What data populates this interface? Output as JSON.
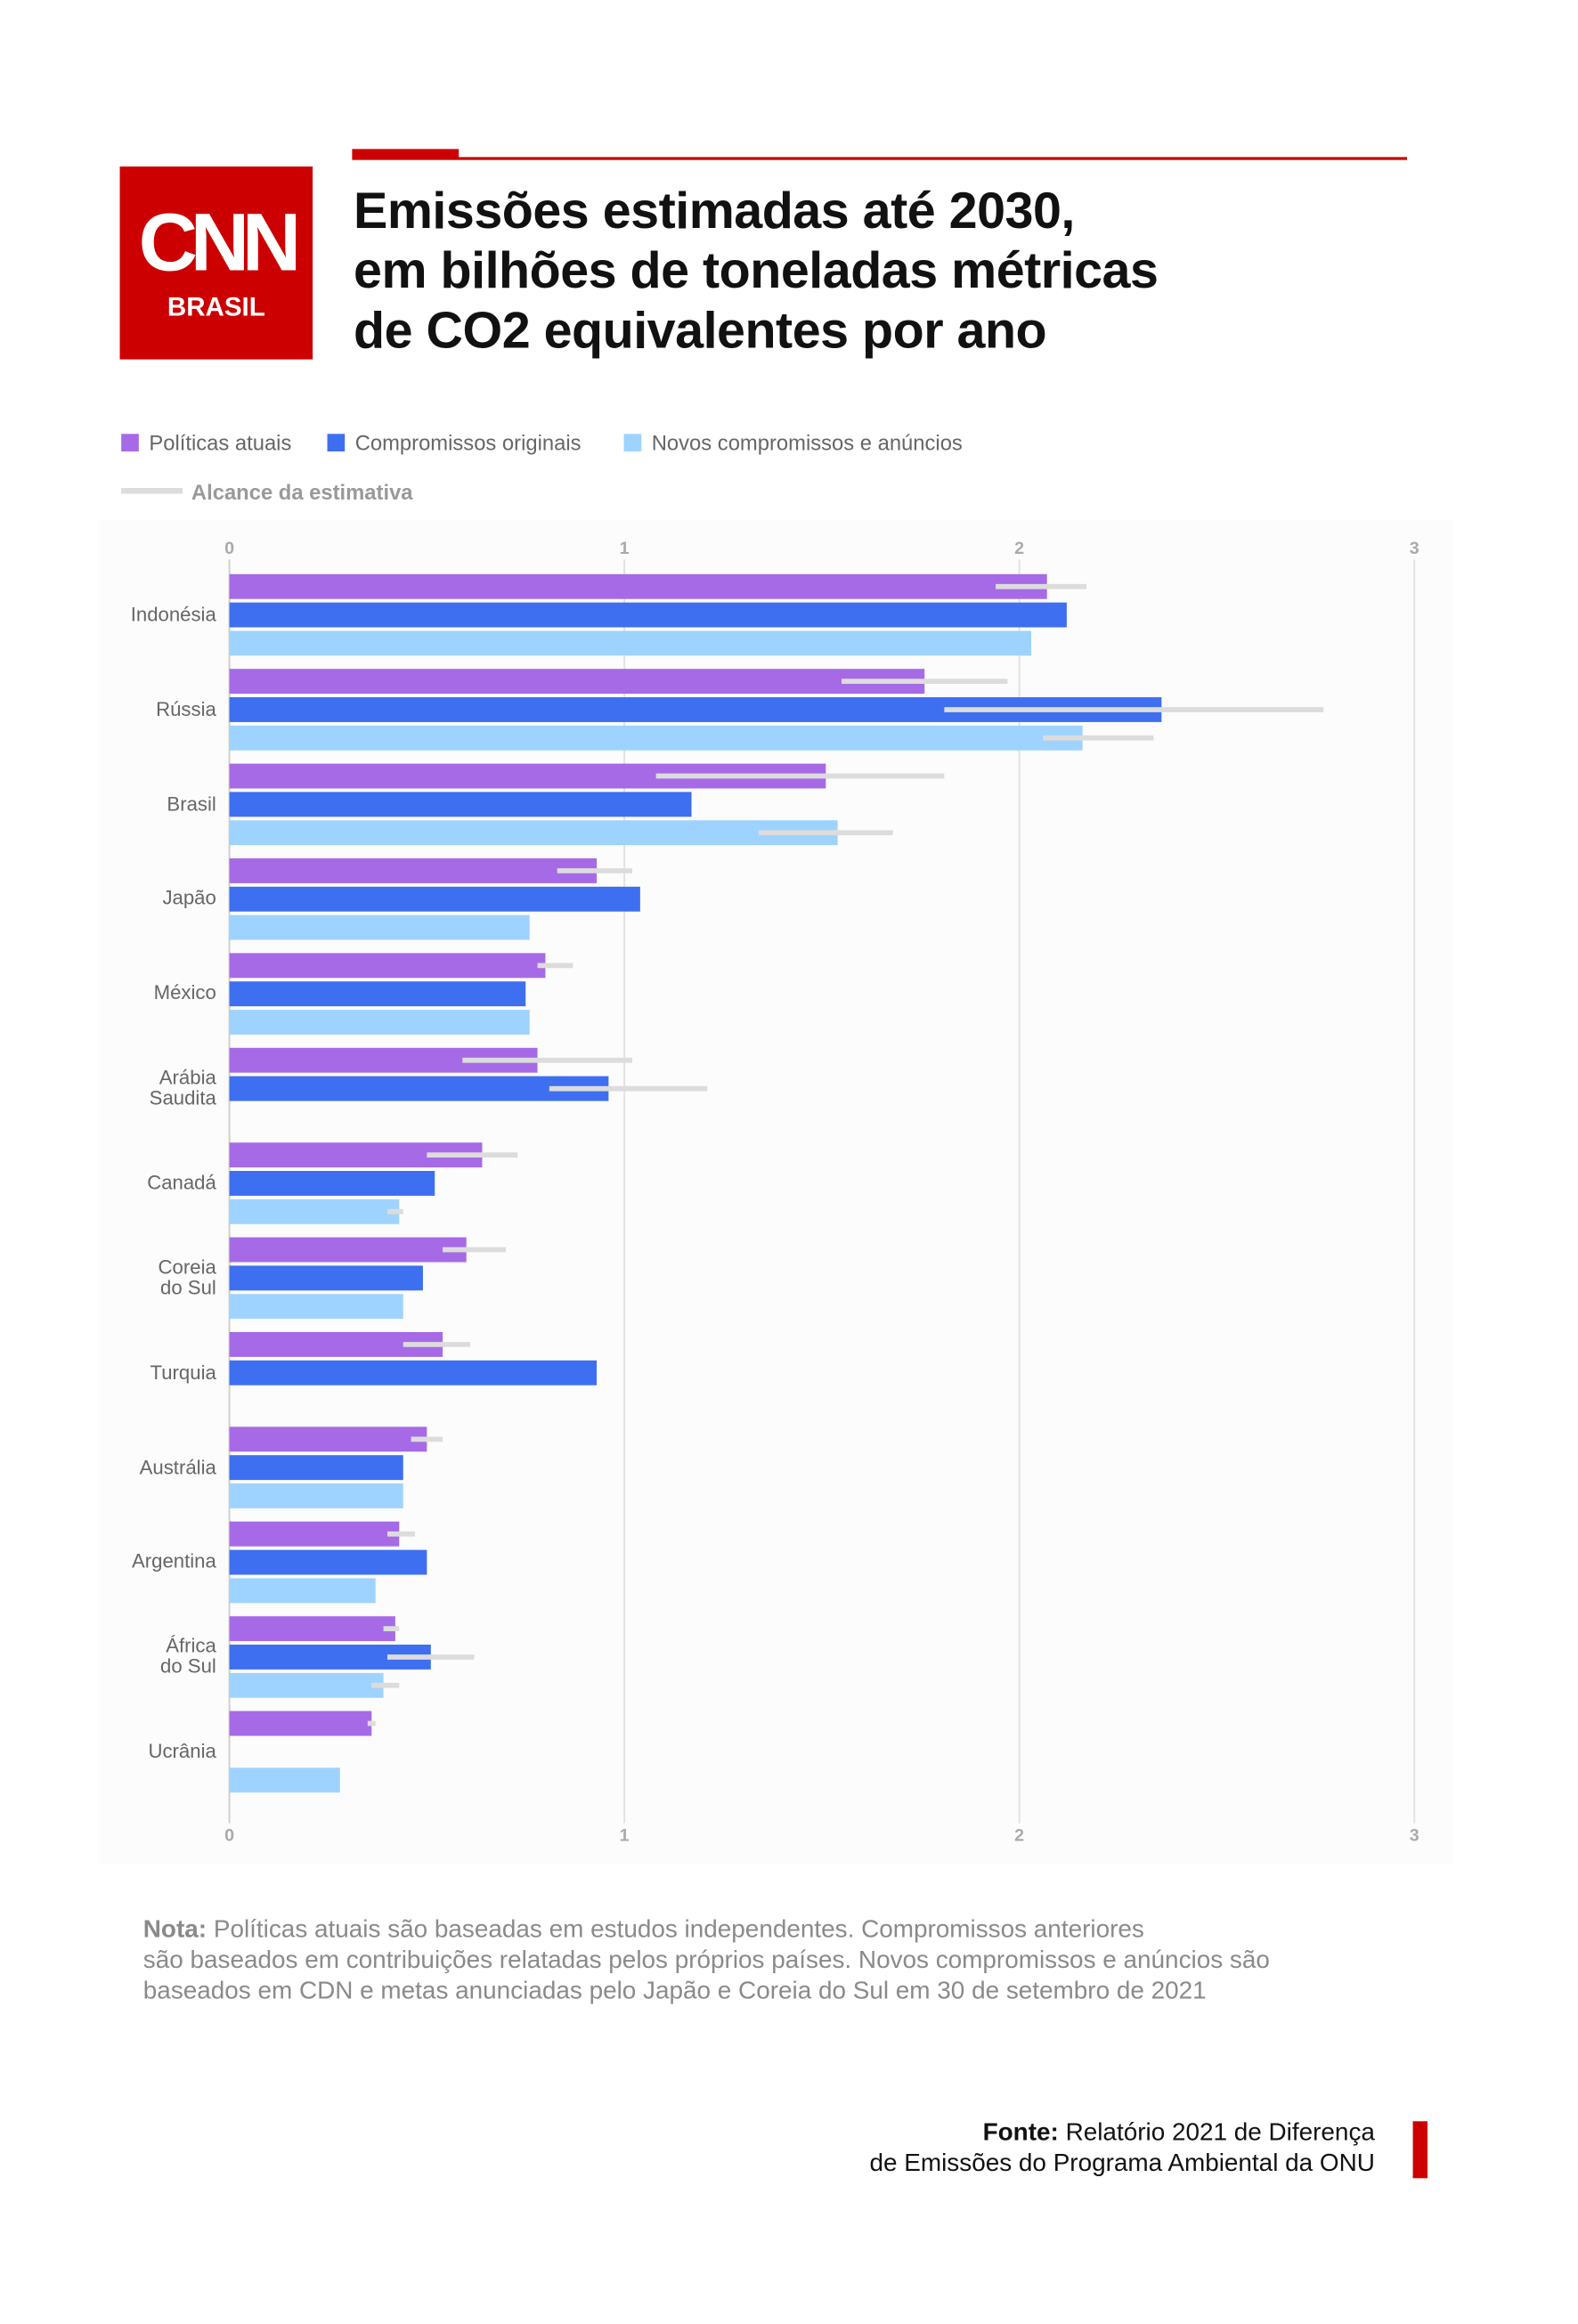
{
  "logo": {
    "text": "CNN",
    "subtitle": "BRASIL"
  },
  "chart_data": {
    "type": "bar",
    "orientation": "horizontal",
    "title": "Emissões estimadas até 2030,\nem bilhões de toneladas métricas\nde CO2 equivalentes por ano",
    "categories": [
      "Indonésia",
      "Rússia",
      "Brasil",
      "Japão",
      "México",
      "Arábia\nSaudita",
      "Canadá",
      "Coreia\ndo Sul",
      "Turquia",
      "Austrália",
      "Argentina",
      "África\ndo Sul",
      "Ucrânia"
    ],
    "series": [
      {
        "name": "Políticas atuais",
        "color": "#a66ae6",
        "values": [
          2.07,
          1.76,
          1.51,
          0.93,
          0.8,
          0.78,
          0.64,
          0.6,
          0.54,
          0.5,
          0.43,
          0.42,
          0.36
        ],
        "ranges": [
          [
            1.94,
            2.17
          ],
          [
            1.55,
            1.97
          ],
          [
            1.08,
            1.81
          ],
          [
            0.83,
            1.02
          ],
          [
            0.78,
            0.87
          ],
          [
            0.59,
            1.02
          ],
          [
            0.5,
            0.73
          ],
          [
            0.54,
            0.7
          ],
          [
            0.44,
            0.61
          ],
          [
            0.46,
            0.54
          ],
          [
            0.4,
            0.47
          ],
          [
            0.39,
            0.43
          ],
          [
            0.35,
            0.37
          ]
        ]
      },
      {
        "name": "Compromissos originais",
        "color": "#3d6ff0",
        "values": [
          2.12,
          2.36,
          1.17,
          1.04,
          0.75,
          0.96,
          0.52,
          0.49,
          0.93,
          0.44,
          0.5,
          0.51,
          null
        ],
        "ranges": [
          null,
          [
            1.81,
            2.77
          ],
          null,
          null,
          null,
          [
            0.81,
            1.21
          ],
          null,
          null,
          null,
          null,
          null,
          [
            0.4,
            0.62
          ],
          null
        ]
      },
      {
        "name": "Novos compromissos e anúncios",
        "color": "#9fd3ff",
        "values": [
          2.03,
          2.16,
          1.54,
          0.76,
          0.76,
          null,
          0.43,
          0.44,
          null,
          0.44,
          0.37,
          0.39,
          0.28
        ],
        "ranges": [
          null,
          [
            2.06,
            2.34
          ],
          [
            1.34,
            1.68
          ],
          null,
          null,
          null,
          [
            0.4,
            0.44
          ],
          null,
          null,
          null,
          null,
          [
            0.36,
            0.43
          ],
          null
        ]
      }
    ],
    "range_legend": {
      "name": "Alcance da estimativa",
      "color": "#dcdcdc"
    },
    "xlim": [
      0,
      3
    ],
    "xticks": [
      0,
      1,
      2,
      3
    ],
    "grid": true
  },
  "note": {
    "label": "Nota:",
    "text": "Políticas atuais são baseadas em estudos independentes. Compromissos anteriores\nsão baseados em contribuições relatadas pelos próprios países. Novos compromissos e anúncios são\nbaseados em CDN e metas anunciadas pelo Japão e Coreia do Sul em 30 de setembro de 2021"
  },
  "source": {
    "label": "Fonte:",
    "text": "Relatório 2021 de Diferença\nde Emissões do Programa Ambiental da ONU"
  }
}
